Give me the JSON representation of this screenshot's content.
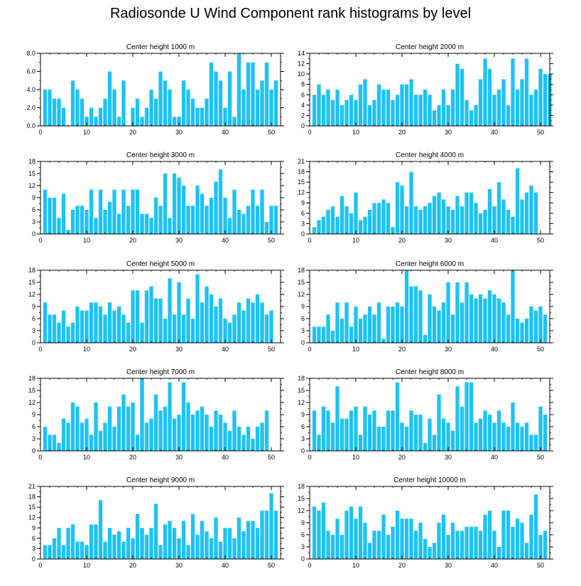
{
  "title": "Radiosonde U Wind Component rank histograms by level",
  "colors": {
    "bar": "#1ec2f5",
    "axis": "#000000",
    "background": "#ffffff"
  },
  "chart_data": [
    {
      "type": "bar",
      "title": "Center height 1000 m",
      "ylim": [
        0,
        8
      ],
      "yticks": [
        "0.0",
        "2.0",
        "4.0",
        "6.0",
        "8.0"
      ],
      "ytick_values": [
        0,
        2,
        4,
        6,
        8
      ],
      "xlim": [
        0,
        52
      ],
      "xticks": [
        "0",
        "10",
        "20",
        "30",
        "40",
        "50"
      ],
      "values": [
        4,
        4,
        3,
        3,
        2,
        0,
        5,
        4,
        3,
        1,
        2,
        1,
        2,
        3,
        6,
        4,
        1,
        5,
        0,
        2,
        3,
        1,
        2,
        4,
        3,
        6,
        5,
        4,
        1,
        1,
        5,
        4,
        3,
        2,
        2,
        3,
        7,
        6,
        5,
        2,
        6,
        1,
        8,
        4,
        7,
        7,
        4,
        5,
        7,
        4,
        5
      ]
    },
    {
      "type": "bar",
      "title": "Center height 2000 m",
      "ylim": [
        0,
        14
      ],
      "yticks": [
        "0",
        "2",
        "4",
        "6",
        "8",
        "10",
        "12",
        "14"
      ],
      "ytick_values": [
        0,
        2,
        4,
        6,
        8,
        10,
        12,
        14
      ],
      "xlim": [
        0,
        52
      ],
      "xticks": [
        "0",
        "10",
        "20",
        "30",
        "40",
        "50"
      ],
      "values": [
        6,
        8,
        6,
        7,
        5,
        7,
        4,
        5,
        6,
        5,
        8,
        9,
        4,
        5,
        8,
        7,
        7,
        5,
        6,
        8,
        8,
        9,
        6,
        6,
        7,
        6,
        3,
        4,
        7,
        4,
        7,
        12,
        11,
        5,
        3,
        4,
        9,
        13,
        11,
        6,
        7,
        9,
        4,
        13,
        7,
        9,
        13,
        6,
        7,
        11,
        10,
        10
      ]
    },
    {
      "type": "bar",
      "title": "Center height 3000 m",
      "ylim": [
        0,
        18
      ],
      "yticks": [
        "0",
        "3",
        "6",
        "9",
        "12",
        "15",
        "18"
      ],
      "ytick_values": [
        0,
        3,
        6,
        9,
        12,
        15,
        18
      ],
      "xlim": [
        0,
        52
      ],
      "xticks": [
        "0",
        "10",
        "20",
        "30",
        "40",
        "50"
      ],
      "values": [
        11,
        9,
        9,
        4,
        10,
        1,
        6,
        7,
        7,
        6,
        11,
        4,
        11,
        6,
        8,
        11,
        5,
        11,
        7,
        11,
        11,
        5,
        5,
        4,
        9,
        7,
        15,
        4,
        15,
        14,
        12,
        7,
        7,
        12,
        10,
        7,
        9,
        13,
        16,
        9,
        4,
        11,
        6,
        5,
        7,
        11,
        7,
        11,
        3,
        7,
        7
      ]
    },
    {
      "type": "bar",
      "title": "Center height 4000 m",
      "ylim": [
        0,
        21
      ],
      "yticks": [
        "0",
        "3",
        "6",
        "9",
        "12",
        "15",
        "18",
        "21"
      ],
      "ytick_values": [
        0,
        3,
        6,
        9,
        12,
        15,
        18,
        21
      ],
      "xlim": [
        0,
        52
      ],
      "xticks": [
        "0",
        "10",
        "20",
        "30",
        "40",
        "50"
      ],
      "values": [
        2,
        4,
        5,
        7,
        8,
        5,
        11,
        8,
        6,
        12,
        4,
        5,
        7,
        9,
        9,
        10,
        9,
        2,
        15,
        14,
        8,
        18,
        8,
        7,
        8,
        9,
        11,
        12,
        10,
        8,
        7,
        11,
        8,
        12,
        12,
        9,
        6,
        7,
        13,
        8,
        15,
        10,
        7,
        5,
        19,
        10,
        12,
        14,
        12
      ]
    },
    {
      "type": "bar",
      "title": "Center height 5000 m",
      "ylim": [
        0,
        18
      ],
      "yticks": [
        "0",
        "3",
        "6",
        "9",
        "12",
        "15",
        "18"
      ],
      "ytick_values": [
        0,
        3,
        6,
        9,
        12,
        15,
        18
      ],
      "xlim": [
        0,
        52
      ],
      "xticks": [
        "0",
        "10",
        "20",
        "30",
        "40",
        "50"
      ],
      "values": [
        10,
        7,
        7,
        5,
        8,
        4,
        5,
        9,
        8,
        8,
        10,
        10,
        9,
        7,
        10,
        8,
        9,
        7,
        5,
        13,
        13,
        5,
        13,
        14,
        11,
        11,
        6,
        16,
        7,
        15,
        7,
        11,
        6,
        17,
        10,
        14,
        12,
        9,
        11,
        6,
        5,
        7,
        10,
        8,
        11,
        10,
        12,
        10,
        7,
        8
      ]
    },
    {
      "type": "bar",
      "title": "Center height 6000 m",
      "ylim": [
        0,
        18
      ],
      "yticks": [
        "0",
        "3",
        "6",
        "9",
        "12",
        "15",
        "18"
      ],
      "ytick_values": [
        0,
        3,
        6,
        9,
        12,
        15,
        18
      ],
      "xlim": [
        0,
        52
      ],
      "xticks": [
        "0",
        "10",
        "20",
        "30",
        "40",
        "50"
      ],
      "values": [
        4,
        4,
        4,
        7,
        3,
        10,
        6,
        10,
        4,
        9,
        6,
        7,
        9,
        7,
        10,
        1,
        9,
        9,
        10,
        9,
        18,
        14,
        14,
        13,
        2,
        12,
        9,
        8,
        10,
        15,
        7,
        15,
        10,
        15,
        12,
        11,
        12,
        11,
        13,
        12,
        11,
        10,
        7,
        18,
        6,
        5,
        6,
        9,
        8,
        9,
        7
      ]
    },
    {
      "type": "bar",
      "title": "Center height 7000 m",
      "ylim": [
        0,
        18
      ],
      "yticks": [
        "0",
        "3",
        "6",
        "9",
        "12",
        "15",
        "18"
      ],
      "ytick_values": [
        0,
        3,
        6,
        9,
        12,
        15,
        18
      ],
      "xlim": [
        0,
        52
      ],
      "xticks": [
        "0",
        "10",
        "20",
        "30",
        "40",
        "50"
      ],
      "values": [
        6,
        4,
        4,
        2,
        8,
        7,
        12,
        11,
        7,
        8,
        4,
        12,
        5,
        7,
        11,
        6,
        11,
        14,
        11,
        12,
        4,
        18,
        7,
        8,
        14,
        10,
        11,
        17,
        8,
        9,
        17,
        12,
        9,
        10,
        11,
        9,
        6,
        10,
        9,
        7,
        5,
        10,
        6,
        4,
        6,
        3,
        6,
        7,
        10
      ]
    },
    {
      "type": "bar",
      "title": "Center height 8000 m",
      "ylim": [
        0,
        18
      ],
      "yticks": [
        "0",
        "3",
        "6",
        "9",
        "12",
        "15",
        "18"
      ],
      "ytick_values": [
        0,
        3,
        6,
        9,
        12,
        15,
        18
      ],
      "xlim": [
        0,
        52
      ],
      "xticks": [
        "0",
        "10",
        "20",
        "30",
        "40",
        "50"
      ],
      "values": [
        10,
        4,
        11,
        10,
        7,
        16,
        8,
        8,
        10,
        11,
        4,
        11,
        9,
        10,
        6,
        6,
        10,
        10,
        17,
        7,
        6,
        10,
        9,
        9,
        2,
        8,
        4,
        14,
        8,
        7,
        5,
        16,
        11,
        17,
        17,
        7,
        8,
        10,
        9,
        7,
        10,
        7,
        6,
        12,
        7,
        6,
        7,
        4,
        4,
        11,
        9
      ]
    },
    {
      "type": "bar",
      "title": "Center height 9000 m",
      "ylim": [
        0,
        21
      ],
      "yticks": [
        "0",
        "3",
        "6",
        "9",
        "12",
        "15",
        "18",
        "21"
      ],
      "ytick_values": [
        0,
        3,
        6,
        9,
        12,
        15,
        18,
        21
      ],
      "xlim": [
        0,
        52
      ],
      "xticks": [
        "0",
        "10",
        "20",
        "30",
        "40",
        "50"
      ],
      "values": [
        4,
        4,
        6,
        9,
        4,
        9,
        10,
        5,
        5,
        4,
        10,
        10,
        17,
        5,
        9,
        7,
        8,
        5,
        9,
        6,
        13,
        9,
        7,
        9,
        16,
        4,
        10,
        11,
        9,
        6,
        11,
        4,
        13,
        7,
        11,
        8,
        6,
        12,
        5,
        9,
        9,
        6,
        12,
        8,
        11,
        11,
        9,
        14,
        14,
        19,
        14
      ]
    },
    {
      "type": "bar",
      "title": "Center height 10000 m",
      "ylim": [
        0,
        18
      ],
      "yticks": [
        "0",
        "3",
        "6",
        "9",
        "12",
        "15",
        "18"
      ],
      "ytick_values": [
        0,
        3,
        6,
        9,
        12,
        15,
        18
      ],
      "xlim": [
        0,
        52
      ],
      "xticks": [
        "0",
        "10",
        "20",
        "30",
        "40",
        "50"
      ],
      "values": [
        13,
        12,
        14,
        7,
        6,
        10,
        6,
        12,
        13,
        10,
        13,
        9,
        4,
        7,
        7,
        11,
        6,
        8,
        12,
        10,
        10,
        10,
        7,
        9,
        5,
        3,
        4,
        9,
        11,
        6,
        9,
        7,
        7,
        8,
        8,
        8,
        7,
        11,
        12,
        7,
        3,
        12,
        12,
        8,
        10,
        9,
        4,
        11,
        16,
        6,
        7
      ]
    }
  ]
}
